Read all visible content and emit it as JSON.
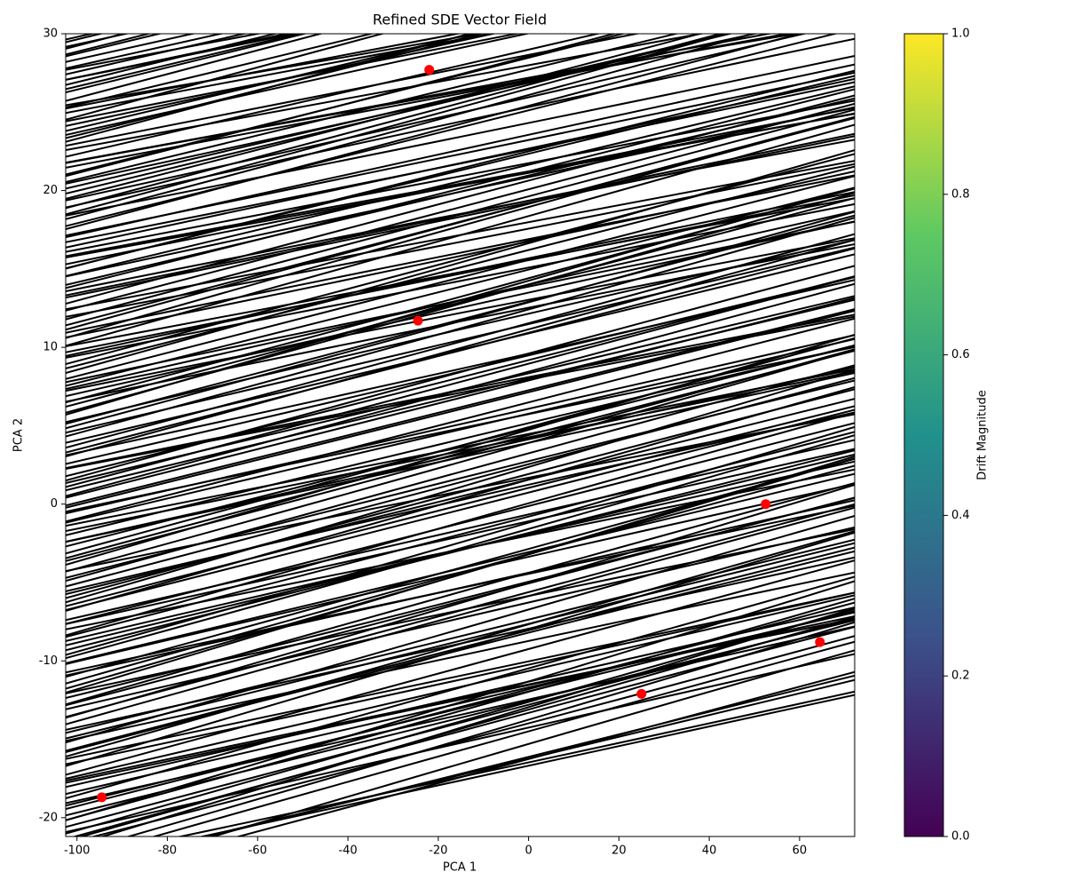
{
  "chart_data": {
    "type": "scatter",
    "title": "Refined SDE Vector Field",
    "x_label": "PCA 1",
    "y_label": "PCA 2",
    "x": [
      -22,
      -24.5,
      52.5,
      64.5,
      25,
      -94.5
    ],
    "y": [
      27.7,
      11.7,
      0,
      -8.8,
      -12.1,
      -18.7
    ],
    "color": "#ff0000",
    "xlim": [
      -102.5,
      72.2
    ],
    "xticks": [
      -100,
      -80,
      -60,
      -40,
      -20,
      0,
      20,
      40,
      60
    ],
    "ylim": [
      -21.2,
      30
    ],
    "yticks": [
      -20,
      -10,
      0,
      10,
      20,
      30
    ],
    "colorbar": {
      "label": "Drift Magnitude",
      "colormap": [
        "#440154",
        "#3b528b",
        "#21918c",
        "#5ec962",
        "#fde725"
      ],
      "lim": [
        0,
        1
      ],
      "ticks": [
        {
          "value": 0,
          "label": "0.0"
        },
        {
          "value": 0.2,
          "label": "0.2"
        },
        {
          "value": 0.4,
          "label": "0.4"
        },
        {
          "value": 0.6,
          "label": "0.6"
        },
        {
          "value": 0.8,
          "label": "0.8"
        },
        {
          "value": 1,
          "label": "1.0"
        }
      ]
    }
  }
}
